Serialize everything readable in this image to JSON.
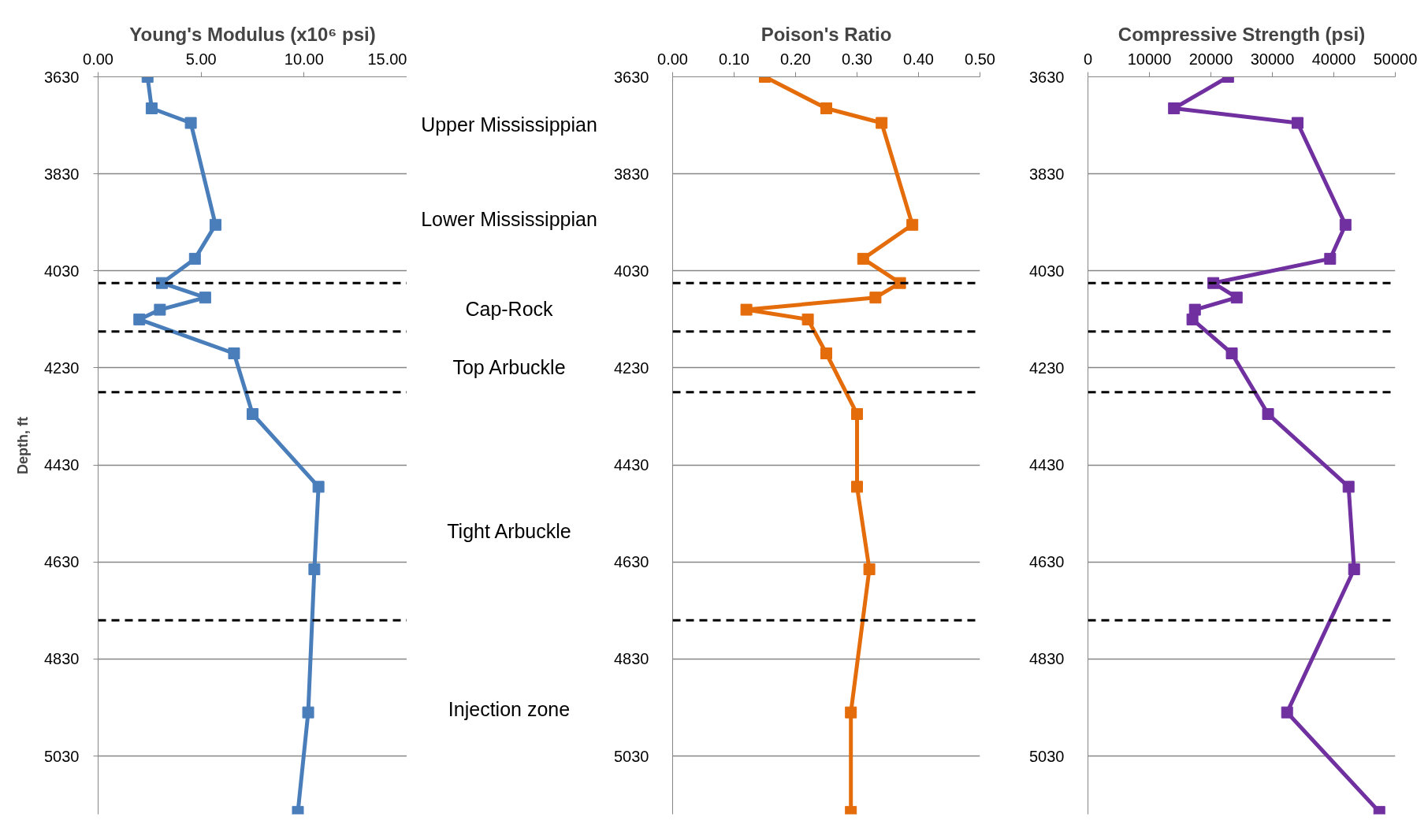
{
  "chart_data": [
    {
      "type": "line",
      "title": "Young's Modulus (x10⁶ psi)",
      "ylabel": "Depth, ft",
      "xlim": [
        0,
        15
      ],
      "xticks": [
        {
          "value": 0,
          "label": "0.00"
        },
        {
          "value": 5,
          "label": "5.00"
        },
        {
          "value": 10,
          "label": "10.00"
        },
        {
          "value": 15,
          "label": "15.00"
        }
      ],
      "ylim": [
        5150,
        3630
      ],
      "yticks": [
        3630,
        3830,
        4030,
        4230,
        4430,
        4630,
        4830,
        5030
      ],
      "grid": "y",
      "marker": "square",
      "line_style": "solid",
      "series": [
        {
          "color": "#4a7ebb",
          "x": [
            2.4,
            2.6,
            4.5,
            5.7,
            4.7,
            3.1,
            5.2,
            3.0,
            2.0,
            6.6,
            7.5,
            10.7,
            10.5,
            10.2,
            9.7
          ],
          "values": [
            3630,
            3695,
            3725,
            3935,
            4005,
            4055,
            4085,
            4110,
            4130,
            4200,
            4325,
            4475,
            4645,
            4940,
            5145
          ]
        }
      ],
      "ref_lines": [
        {
          "axis": "y",
          "value": 4055,
          "color": "#000000",
          "line_style": "dashed"
        },
        {
          "axis": "y",
          "value": 4155,
          "color": "#000000",
          "line_style": "dashed"
        },
        {
          "axis": "y",
          "value": 4280,
          "color": "#000000",
          "line_style": "dashed"
        },
        {
          "axis": "y",
          "value": 4750,
          "color": "#000000",
          "line_style": "dashed"
        }
      ],
      "annotations": [
        "Upper Mississippian",
        "Lower Mississippian",
        "Cap-Rock",
        "Top Arbuckle",
        "Tight Arbuckle",
        "Injection zone"
      ]
    },
    {
      "type": "line",
      "title": "Poison's Ratio",
      "xlim": [
        0,
        0.5
      ],
      "xticks": [
        {
          "value": 0,
          "label": "0.00"
        },
        {
          "value": 0.1,
          "label": "0.10"
        },
        {
          "value": 0.2,
          "label": "0.20"
        },
        {
          "value": 0.3,
          "label": "0.30"
        },
        {
          "value": 0.4,
          "label": "0.40"
        },
        {
          "value": 0.5,
          "label": "0.50"
        }
      ],
      "ylim": [
        5150,
        3630
      ],
      "yticks": [
        3630,
        3830,
        4030,
        4230,
        4430,
        4630,
        4830,
        5030
      ],
      "grid": "y",
      "marker": "square",
      "line_style": "solid",
      "series": [
        {
          "color": "#e46c0a",
          "x": [
            0.15,
            0.25,
            0.34,
            0.39,
            0.31,
            0.37,
            0.33,
            0.12,
            0.22,
            0.25,
            0.3,
            0.3,
            0.32,
            0.29,
            0.29
          ],
          "values": [
            3630,
            3695,
            3725,
            3935,
            4005,
            4055,
            4085,
            4110,
            4130,
            4200,
            4325,
            4475,
            4645,
            4940,
            5145
          ]
        }
      ],
      "ref_lines": [
        {
          "axis": "y",
          "value": 4055,
          "color": "#000000",
          "line_style": "dashed"
        },
        {
          "axis": "y",
          "value": 4155,
          "color": "#000000",
          "line_style": "dashed"
        },
        {
          "axis": "y",
          "value": 4280,
          "color": "#000000",
          "line_style": "dashed"
        },
        {
          "axis": "y",
          "value": 4750,
          "color": "#000000",
          "line_style": "dashed"
        }
      ]
    },
    {
      "type": "line",
      "title": "Compressive Strength (psi)",
      "xlim": [
        0,
        50000
      ],
      "xticks": [
        0,
        10000,
        20000,
        30000,
        40000,
        50000
      ],
      "ylim": [
        5150,
        3630
      ],
      "yticks": [
        3630,
        3830,
        4030,
        4230,
        4430,
        4630,
        4830,
        5030
      ],
      "grid": "y",
      "marker": "square",
      "line_style": "solid",
      "series": [
        {
          "color": "#7030a0",
          "x": [
            22800,
            14000,
            34100,
            41900,
            39400,
            20400,
            24200,
            17400,
            17000,
            23400,
            29300,
            42400,
            43300,
            32400,
            47400
          ],
          "values": [
            3630,
            3695,
            3725,
            3935,
            4005,
            4055,
            4085,
            4110,
            4130,
            4200,
            4325,
            4475,
            4645,
            4940,
            5145
          ]
        }
      ],
      "ref_lines": [
        {
          "axis": "y",
          "value": 4055,
          "color": "#000000",
          "line_style": "dashed"
        },
        {
          "axis": "y",
          "value": 4155,
          "color": "#000000",
          "line_style": "dashed"
        },
        {
          "axis": "y",
          "value": 4280,
          "color": "#000000",
          "line_style": "dashed"
        },
        {
          "axis": "y",
          "value": 4750,
          "color": "#000000",
          "line_style": "dashed"
        }
      ]
    }
  ]
}
